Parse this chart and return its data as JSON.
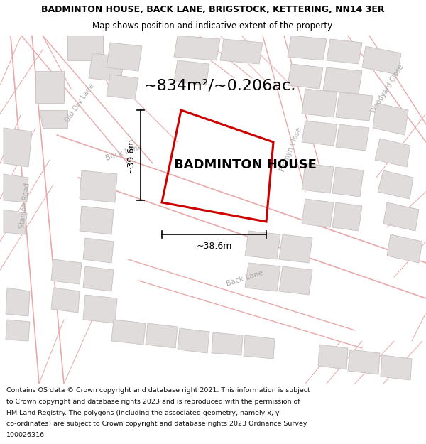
{
  "title_line1": "BADMINTON HOUSE, BACK LANE, BRIGSTOCK, KETTERING, NN14 3ER",
  "title_line2": "Map shows position and indicative extent of the property.",
  "area_text": "~834m²/~0.206ac.",
  "property_name": "BADMINTON HOUSE",
  "dim_width": "~38.6m",
  "dim_height": "~39.6m",
  "footer_lines": [
    "Contains OS data © Crown copyright and database right 2021. This information is subject",
    "to Crown copyright and database rights 2023 and is reproduced with the permission of",
    "HM Land Registry. The polygons (including the associated geometry, namely x, y",
    "co-ordinates) are subject to Crown copyright and database rights 2023 Ordnance Survey",
    "100026316."
  ],
  "map_bg": "#f7f4f4",
  "road_line_color": "#e8a8a8",
  "building_fill": "#e0dcdc",
  "building_edge": "#c8c0c0",
  "property_outline_color": "#cc0000",
  "text_color": "#000000",
  "road_label_color": "#aaaaaa",
  "title_bg": "#ffffff",
  "footer_bg": "#ffffff",
  "title_fontsize": 9,
  "subtitle_fontsize": 8.5,
  "area_fontsize": 16,
  "propname_fontsize": 13,
  "dim_fontsize": 9,
  "road_label_fontsize": 7
}
